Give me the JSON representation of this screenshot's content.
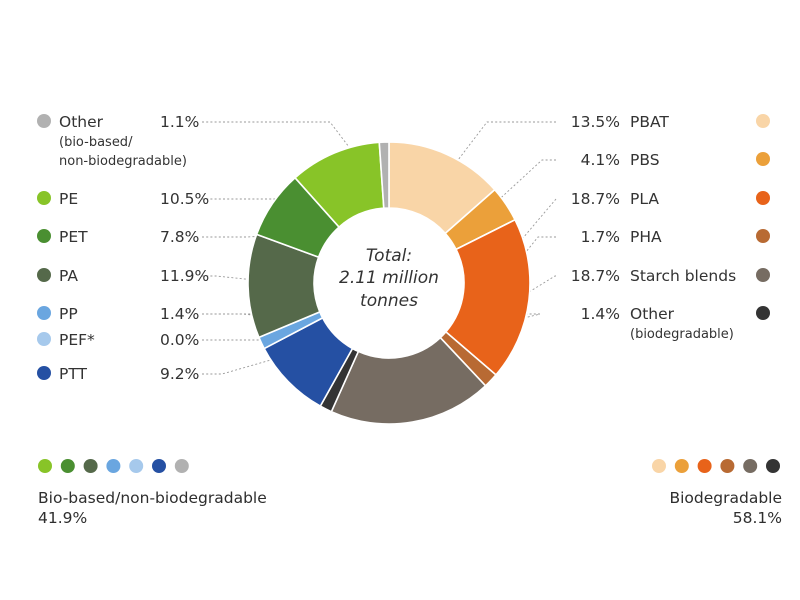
{
  "chart_data": {
    "type": "donut",
    "center_text": [
      "Total:",
      "2.11 million",
      "tonnes"
    ],
    "slices": [
      {
        "name": "PBAT",
        "value": 13.5,
        "label": "13.5%",
        "color": "#f9d5a7",
        "group": "biodegradable"
      },
      {
        "name": "PBS",
        "value": 4.1,
        "label": "4.1%",
        "color": "#eba03a",
        "group": "biodegradable"
      },
      {
        "name": "PLA",
        "value": 18.7,
        "label": "18.7%",
        "color": "#e8631a",
        "group": "biodegradable"
      },
      {
        "name": "PHA",
        "value": 1.7,
        "label": "1.7%",
        "color": "#b86a33",
        "group": "biodegradable"
      },
      {
        "name": "Starch blends",
        "value": 18.7,
        "label": "18.7%",
        "color": "#766c62",
        "group": "biodegradable"
      },
      {
        "name": "Other",
        "sub": "(biodegradable)",
        "value": 1.4,
        "label": "1.4%",
        "color": "#343434",
        "group": "biodegradable"
      },
      {
        "name": "PTT",
        "value": 9.2,
        "label": "9.2%",
        "color": "#2550a3",
        "group": "bio-based"
      },
      {
        "name": "PEF*",
        "value": 0.0,
        "label": "0.0%",
        "color": "#a6c9ec",
        "group": "bio-based"
      },
      {
        "name": "PP",
        "value": 1.4,
        "label": "1.4%",
        "color": "#6aa6e0",
        "group": "bio-based"
      },
      {
        "name": "PA",
        "value": 11.9,
        "label": "11.9%",
        "color": "#55694a",
        "group": "bio-based"
      },
      {
        "name": "PET",
        "value": 7.8,
        "label": "7.8%",
        "color": "#4a8f31",
        "group": "bio-based"
      },
      {
        "name": "PE",
        "value": 10.5,
        "label": "10.5%",
        "color": "#88c428",
        "group": "bio-based"
      },
      {
        "name": "Other",
        "sub": "(bio-based/ non-biodegradable)",
        "value": 1.1,
        "label": "1.1%",
        "color": "#b1b1b1",
        "group": "bio-based"
      }
    ],
    "groups": [
      {
        "id": "bio-based",
        "name": "Bio-based/non-biodegradable",
        "total": "41.9%"
      },
      {
        "id": "biodegradable",
        "name": "Biodegradable",
        "total": "58.1%"
      }
    ]
  },
  "left_legend": [
    {
      "name": "Other",
      "sub": [
        "(bio-based/",
        "non-biodegradable)"
      ],
      "value": "1.1%",
      "color": "#b1b1b1"
    },
    {
      "name": "PE",
      "value": "10.5%",
      "color": "#88c428"
    },
    {
      "name": "PET",
      "value": "7.8%",
      "color": "#4a8f31"
    },
    {
      "name": "PA",
      "value": "11.9%",
      "color": "#55694a"
    },
    {
      "name": "PP",
      "value": "1.4%",
      "color": "#6aa6e0"
    },
    {
      "name": "PEF*",
      "value": "0.0%",
      "color": "#a6c9ec"
    },
    {
      "name": "PTT",
      "value": "9.2%",
      "color": "#2550a3"
    }
  ],
  "right_legend": [
    {
      "name": "PBAT",
      "value": "13.5%",
      "color": "#f9d5a7"
    },
    {
      "name": "PBS",
      "value": "4.1%",
      "color": "#eba03a"
    },
    {
      "name": "PLA",
      "value": "18.7%",
      "color": "#e8631a"
    },
    {
      "name": "PHA",
      "value": "1.7%",
      "color": "#b86a33"
    },
    {
      "name": "Starch blends",
      "value": "18.7%",
      "color": "#766c62"
    },
    {
      "name": "Other",
      "sub": [
        "(biodegradable)"
      ],
      "value": "1.4%",
      "color": "#343434"
    }
  ],
  "bottom": {
    "bio_based_title": "Bio-based/non-biodegradable",
    "bio_based_total": "41.9%",
    "bio_based_colors": [
      "#88c428",
      "#4a8f31",
      "#55694a",
      "#6aa6e0",
      "#a6c9ec",
      "#2550a3",
      "#b1b1b1"
    ],
    "biodegradable_title": "Biodegradable",
    "biodegradable_total": "58.1%",
    "biodegradable_colors": [
      "#f9d5a7",
      "#eba03a",
      "#e8631a",
      "#b86a33",
      "#766c62",
      "#343434"
    ]
  }
}
